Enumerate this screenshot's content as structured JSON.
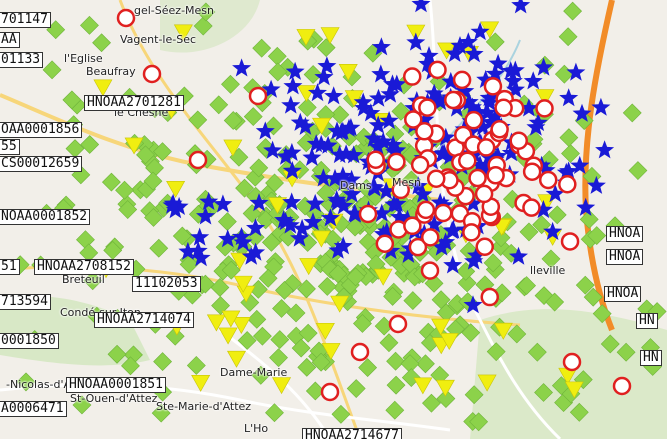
{
  "map": {
    "place_labels": [
      "gel-Séez-Mesn",
      "Vagent-le-Sec",
      "l'Eglise",
      "Beaufray",
      "le Chesne",
      "Dams",
      "Mesn",
      "Breteuil",
      "Condé-sur-Iton",
      "Dame-Marie",
      "-Nicolas-d'Attez",
      "St-Ouen-d'Attez",
      "Ste-Marie-d'Attez",
      "L'Ho",
      "lleville"
    ],
    "station_codes": [
      "701147",
      "AA",
      "01133",
      "HNOAA2701281",
      "OAA0001856",
      "55",
      "CS00012659",
      "NOAA0001852",
      "51",
      "HNOAA2708152",
      "11102053",
      "713594",
      "HNOAA2714074",
      "0001850",
      "HNOAA0001851",
      "A0006471",
      "HNOAA2714677",
      "HNOA",
      "HNOA",
      "HNOA",
      "HN",
      "HN"
    ],
    "symbol_colors": {
      "green_diamond": "#8cd24a",
      "blue_star": "#1a1ad6",
      "red_circle": "#e02020",
      "yellow_triangle": "#f0ee10"
    }
  }
}
